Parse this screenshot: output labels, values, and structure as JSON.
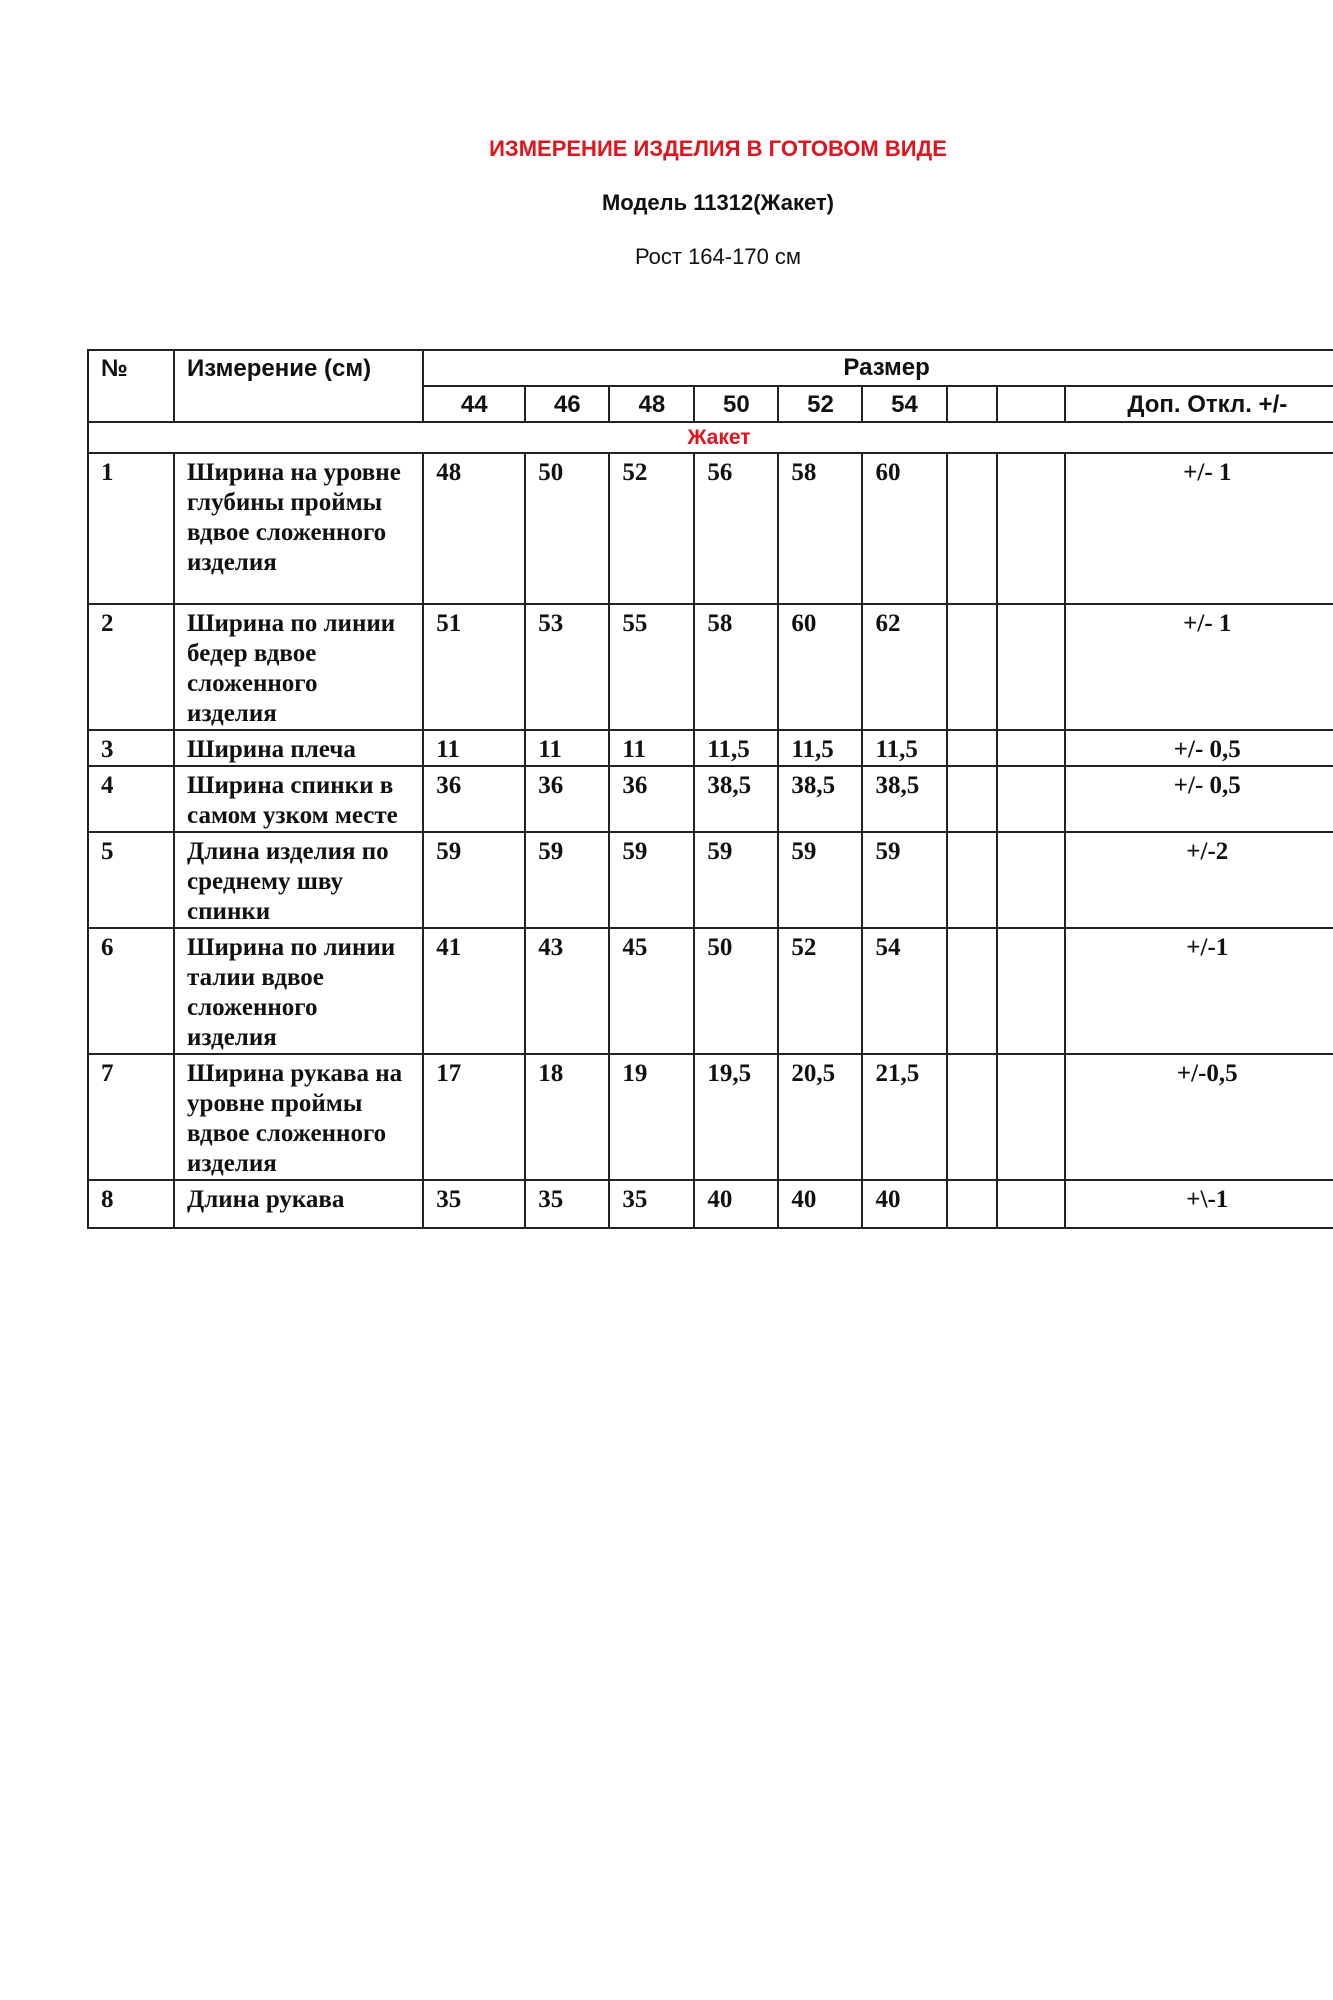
{
  "title": "ИЗМЕРЕНИЕ ИЗДЕЛИЯ В ГОТОВОМ ВИДЕ",
  "model": "Модель 11312(Жакет)",
  "height": "Рост 164-170 см",
  "colors": {
    "accent": "#e0141c",
    "text": "#111111"
  },
  "table": {
    "col_no": "№",
    "col_measure": "Измерение (см)",
    "col_size": "Размер",
    "sizes": [
      "44",
      "46",
      "48",
      "50",
      "52",
      "54",
      "",
      ""
    ],
    "col_tolerance": "Доп.  Откл. +/-",
    "section": "Жакет",
    "rows": [
      {
        "no": "1",
        "name": "Ширина на уровне глубины проймы вдвое сложенного изделия",
        "values": [
          "48",
          "50",
          "52",
          "56",
          "58",
          "60",
          "",
          ""
        ],
        "tol": "+/- 1"
      },
      {
        "no": "2",
        "name": "Ширина по линии бедер вдвое сложенного изделия",
        "values": [
          "51",
          "53",
          "55",
          "58",
          "60",
          "62",
          "",
          ""
        ],
        "tol": "+/- 1"
      },
      {
        "no": "3",
        "name": "Ширина плеча",
        "values": [
          "11",
          "11",
          "11",
          "11,5",
          "11,5",
          "11,5",
          "",
          ""
        ],
        "tol": "+/- 0,5"
      },
      {
        "no": "4",
        "name": "Ширина спинки в самом узком месте",
        "values": [
          "36",
          "36",
          "36",
          "38,5",
          "38,5",
          "38,5",
          "",
          ""
        ],
        "tol": "+/- 0,5"
      },
      {
        "no": "5",
        "name": "Длина изделия по среднему шву спинки",
        "values": [
          "59",
          "59",
          "59",
          "59",
          "59",
          "59",
          "",
          ""
        ],
        "tol": "+/-2"
      },
      {
        "no": "6",
        "name": "Ширина по линии талии вдвое сложенного изделия",
        "values": [
          "41",
          "43",
          "45",
          "50",
          "52",
          "54",
          "",
          ""
        ],
        "tol": "+/-1"
      },
      {
        "no": "7",
        "name": "Ширина рукава на уровне проймы вдвое сложенного изделия",
        "values": [
          "17",
          "18",
          "19",
          "19,5",
          "20,5",
          "21,5",
          "",
          ""
        ],
        "tol": "+/-0,5"
      },
      {
        "no": "8",
        "name": "Длина рукава",
        "values": [
          "35",
          "35",
          "35",
          "40",
          "40",
          "40",
          "",
          ""
        ],
        "tol": "+\\-1"
      }
    ]
  }
}
